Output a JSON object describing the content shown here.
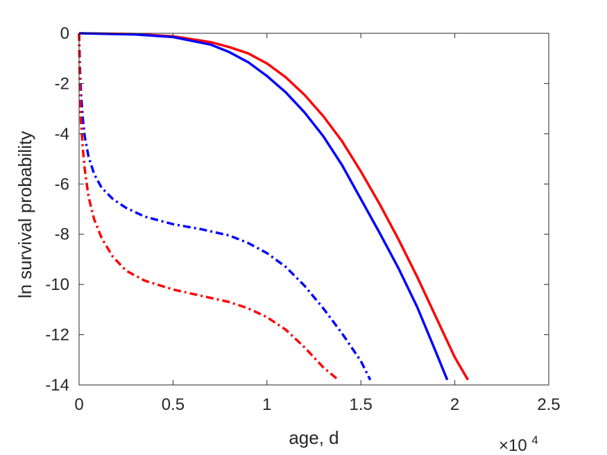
{
  "chart_data": {
    "type": "line",
    "title": "",
    "xlabel": "age, d",
    "ylabel": "ln survival probability",
    "x_exponent_label": {
      "base": "×10",
      "exp": "4"
    },
    "xlim": [
      0,
      2.5
    ],
    "ylim": [
      -14,
      0
    ],
    "x_scale_note": "x values in units of 10^4 days",
    "xticks": [
      0,
      0.5,
      1,
      1.5,
      2,
      2.5
    ],
    "xtick_labels": [
      "0",
      "0.5",
      "1",
      "1.5",
      "2",
      "2.5"
    ],
    "yticks": [
      0,
      -2,
      -4,
      -6,
      -8,
      -10,
      -12,
      -14
    ],
    "ytick_labels": [
      "0",
      "-2",
      "-4",
      "-6",
      "-8",
      "-10",
      "-12",
      "-14"
    ],
    "grid": false,
    "legend": "none",
    "series": [
      {
        "color": "#ff0000",
        "style": "solid",
        "x": [
          0,
          0.3,
          0.5,
          0.7,
          0.8,
          0.9,
          1.0,
          1.1,
          1.2,
          1.3,
          1.4,
          1.5,
          1.6,
          1.7,
          1.8,
          1.9,
          2.0,
          2.07
        ],
        "y": [
          0,
          -0.03,
          -0.12,
          -0.35,
          -0.55,
          -0.8,
          -1.2,
          -1.75,
          -2.45,
          -3.3,
          -4.3,
          -5.5,
          -6.8,
          -8.2,
          -9.7,
          -11.3,
          -12.9,
          -13.8
        ]
      },
      {
        "color": "#0000ff",
        "style": "solid",
        "x": [
          0,
          0.3,
          0.5,
          0.7,
          0.8,
          0.9,
          1.0,
          1.1,
          1.2,
          1.3,
          1.4,
          1.5,
          1.6,
          1.7,
          1.8,
          1.9,
          1.96
        ],
        "y": [
          0,
          -0.05,
          -0.15,
          -0.45,
          -0.75,
          -1.15,
          -1.7,
          -2.35,
          -3.15,
          -4.1,
          -5.25,
          -6.6,
          -7.95,
          -9.35,
          -10.9,
          -12.7,
          -13.8
        ]
      },
      {
        "color": "#0000ff",
        "style": "dashdot",
        "x": [
          0,
          0.005,
          0.01,
          0.02,
          0.03,
          0.05,
          0.08,
          0.12,
          0.18,
          0.25,
          0.35,
          0.5,
          0.65,
          0.8,
          0.9,
          1.0,
          1.1,
          1.2,
          1.3,
          1.4,
          1.5,
          1.55
        ],
        "y": [
          0,
          -1.5,
          -2.4,
          -3.4,
          -4.1,
          -4.9,
          -5.6,
          -6.15,
          -6.6,
          -6.95,
          -7.3,
          -7.6,
          -7.8,
          -8.05,
          -8.35,
          -8.75,
          -9.3,
          -10.05,
          -10.95,
          -11.95,
          -13.05,
          -13.8
        ]
      },
      {
        "color": "#ff0000",
        "style": "dashdot",
        "x": [
          0,
          0.005,
          0.01,
          0.02,
          0.03,
          0.05,
          0.08,
          0.12,
          0.18,
          0.25,
          0.35,
          0.5,
          0.65,
          0.8,
          0.9,
          1.0,
          1.1,
          1.2,
          1.3,
          1.38
        ],
        "y": [
          0,
          -2.5,
          -3.5,
          -4.6,
          -5.4,
          -6.5,
          -7.4,
          -8.15,
          -8.9,
          -9.45,
          -9.85,
          -10.2,
          -10.45,
          -10.7,
          -10.95,
          -11.3,
          -11.8,
          -12.5,
          -13.3,
          -13.8
        ]
      }
    ]
  }
}
